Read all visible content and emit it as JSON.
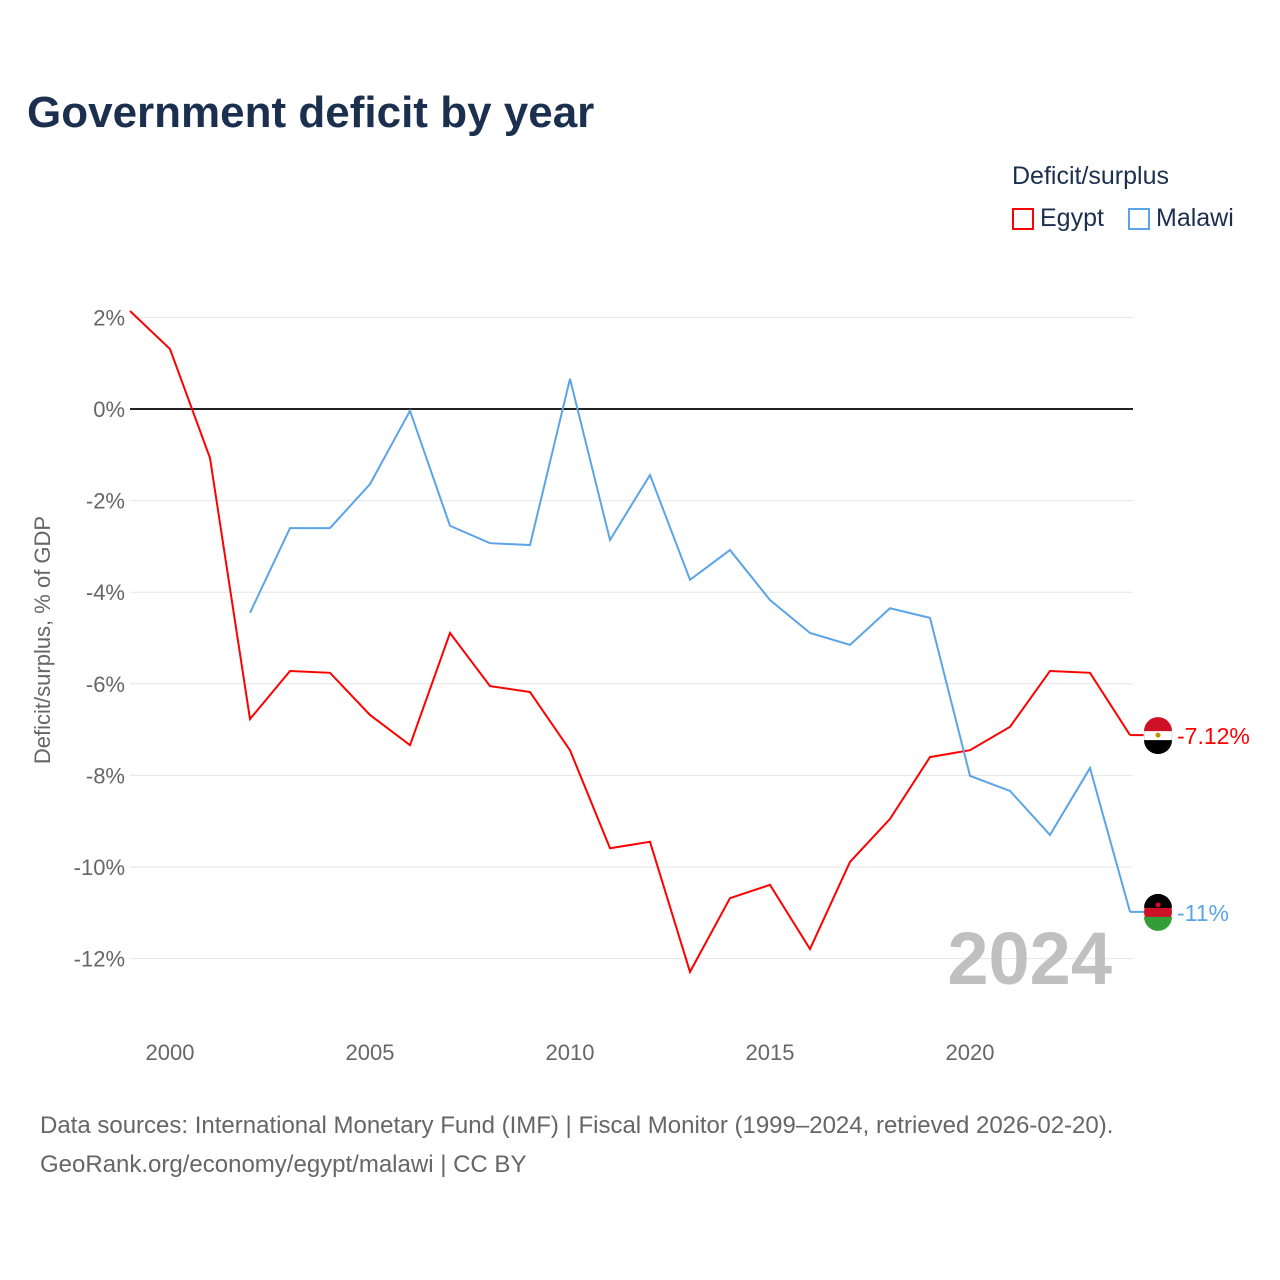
{
  "title": "Government deficit by year",
  "legend": {
    "title": "Deficit/surplus",
    "items": [
      {
        "label": "Egypt",
        "color": "#ff0000"
      },
      {
        "label": "Malawi",
        "color": "#5ba4e8"
      }
    ]
  },
  "source": {
    "line1": "Data sources: International Monetary Fund (IMF) | Fiscal Monitor (1999–2024, retrieved 2026-02-20).",
    "line2": "GeoRank.org/economy/egypt/malawi | CC BY"
  },
  "chart_data": {
    "type": "line",
    "ylabel": "Deficit/surplus, % of GDP",
    "xlabel": "",
    "year_watermark": "2024",
    "xlim": [
      1999,
      2024
    ],
    "ylim": [
      -13,
      2.2
    ],
    "xticks": [
      2000,
      2005,
      2010,
      2015,
      2020
    ],
    "yticks": [
      2,
      0,
      -2,
      -4,
      -6,
      -8,
      -10,
      -12
    ],
    "ytick_labels": [
      "2%",
      "0%",
      "-2%",
      "-4%",
      "-6%",
      "-8%",
      "-10%",
      "-12%"
    ],
    "series": [
      {
        "name": "Egypt",
        "color": "#ff0000",
        "end_label": "-7.12%",
        "x": [
          1999,
          2000,
          2001,
          2002,
          2003,
          2004,
          2005,
          2006,
          2007,
          2008,
          2009,
          2010,
          2011,
          2012,
          2013,
          2014,
          2015,
          2016,
          2017,
          2018,
          2019,
          2020,
          2021,
          2022,
          2023,
          2024
        ],
        "values": [
          2.14,
          1.31,
          -1.07,
          -6.77,
          -5.72,
          -5.76,
          -6.68,
          -7.34,
          -4.89,
          -6.05,
          -6.18,
          -7.45,
          -9.59,
          -9.45,
          -12.29,
          -10.68,
          -10.39,
          -11.79,
          -9.89,
          -8.95,
          -7.6,
          -7.45,
          -6.94,
          -5.72,
          -5.76,
          -7.12
        ]
      },
      {
        "name": "Malawi",
        "color": "#5ba4e8",
        "end_label": "-11%",
        "x": [
          2002,
          2003,
          2004,
          2005,
          2006,
          2007,
          2008,
          2009,
          2010,
          2011,
          2012,
          2013,
          2014,
          2015,
          2016,
          2017,
          2018,
          2019,
          2020,
          2021,
          2022,
          2023,
          2024
        ],
        "values": [
          -4.45,
          -2.6,
          -2.6,
          -1.64,
          -0.04,
          -2.55,
          -2.93,
          -2.97,
          0.66,
          -2.86,
          -1.44,
          -3.73,
          -3.08,
          -4.17,
          -4.89,
          -5.15,
          -4.35,
          -4.56,
          -8.01,
          -8.34,
          -9.3,
          -7.84,
          -10.98
        ]
      }
    ]
  }
}
